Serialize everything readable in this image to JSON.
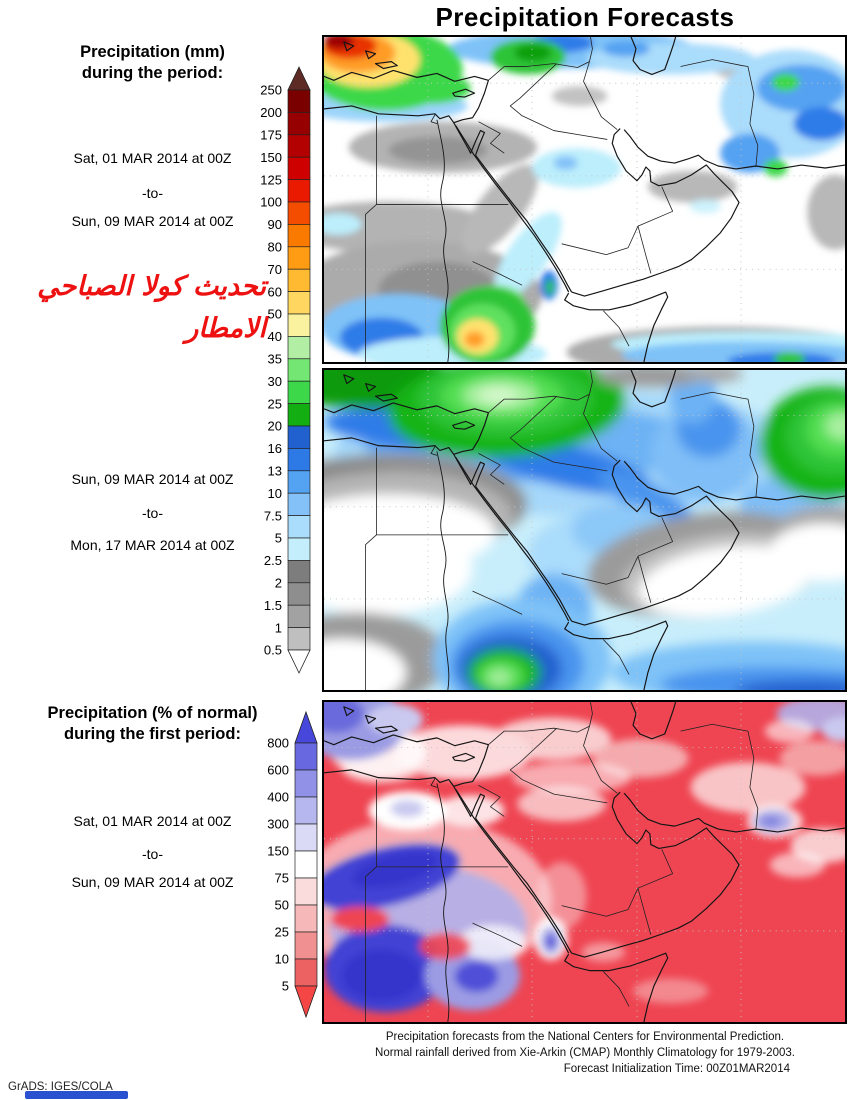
{
  "title": "Precipitation Forecasts",
  "panel1": {
    "label_line1": "Precipitation (mm)",
    "label_line2": "during the period:",
    "date_from": "Sat, 01 MAR 2014 at 00Z",
    "date_sep": "-to-",
    "date_to": "Sun, 09 MAR 2014 at 00Z"
  },
  "panel2": {
    "date_from": "Sun, 09 MAR 2014 at 00Z",
    "date_sep": "-to-",
    "date_to": "Mon, 17 MAR 2014 at 00Z"
  },
  "panel3": {
    "label_line1": "Precipitation (% of normal)",
    "label_line2": "during the first period:",
    "date_from": "Sat, 01 MAR 2014 at 00Z",
    "date_sep": "-to-",
    "date_to": "Sun, 09 MAR 2014 at 00Z"
  },
  "annotation_arabic": {
    "line1": "تحديث كولا الصباحي",
    "line2": "الامطار",
    "color": "#ee1111"
  },
  "footer": {
    "line1": "Precipitation forecasts from the National Centers for Environmental Prediction.",
    "line2": "Normal rainfall derived from Xie-Arkin (CMAP) Monthly Climatology for 1979-2003.",
    "line3": "Forecast Initialization Time: 00Z01MAR2014"
  },
  "credit": "GrADS: IGES/COLA",
  "bottom_bar_color": "#2a52d0",
  "colorbars": {
    "mm": {
      "units": "mm",
      "labels": [
        "250",
        "200",
        "175",
        "150",
        "125",
        "100",
        "90",
        "80",
        "70",
        "60",
        "50",
        "40",
        "35",
        "30",
        "25",
        "20",
        "16",
        "13",
        "10",
        "7.5",
        "5",
        "2.5",
        "2",
        "1.5",
        "1",
        "0.5"
      ],
      "band_colors": [
        "#7a0000",
        "#960000",
        "#b30000",
        "#cf0000",
        "#ea1a00",
        "#f54d00",
        "#fa7a00",
        "#ff9c14",
        "#ffba32",
        "#ffd65f",
        "#fbf2a0",
        "#b2efa4",
        "#74e674",
        "#3cd84a",
        "#12ae12",
        "#2060cf",
        "#2d7ae6",
        "#54a2f2",
        "#83c1f8",
        "#aadcfb",
        "#c4eefb",
        "#7d7d7d",
        "#8e8e8e",
        "#a2a2a2",
        "#bfbfbf"
      ],
      "over_color": "#5e2a24",
      "under_color": "#ffffff"
    },
    "pct": {
      "units": "% of normal",
      "labels": [
        "800",
        "600",
        "400",
        "300",
        "150",
        "75",
        "50",
        "25",
        "10",
        "5"
      ],
      "band_colors": [
        "#6868e0",
        "#9191e8",
        "#b7b7ef",
        "#dadaf6",
        "#ffffff",
        "#fbdcdc",
        "#f6b8b8",
        "#f19090",
        "#ec6262"
      ],
      "over_color": "#4747dc",
      "under_color": "#f54646"
    }
  },
  "chart_data": [
    {
      "type": "heatmap",
      "subtype": "filled-contour-forecast-map",
      "title": "Precipitation (mm), Sat 01 MAR 2014 00Z to Sun 09 MAR 2014 00Z",
      "region": "Middle East / NE Africa, approx 20E-70E, 5N-40N",
      "units": "mm",
      "levels": [
        0.5,
        1,
        1.5,
        2,
        2.5,
        5,
        7.5,
        10,
        13,
        16,
        20,
        25,
        30,
        35,
        40,
        50,
        60,
        70,
        80,
        90,
        100,
        125,
        150,
        175,
        200,
        250
      ],
      "legend_position": "left",
      "grid": "dotted lat/lon",
      "features": [
        "heavy precip hotspot (100-250mm red/orange core, green ring) over Aegean/W Turkey in top-left corner",
        "cyan-blue band 2.5-20mm along whole top edge (Turkey, Caspian region)",
        "green 20-30mm blob north-central (E Turkey)",
        "broad 2.5-16mm cyan/blue area with small 20-30mm green spots over Iran/Afghanistan right side",
        "0.5-2.5mm gray patches over N Egypt, S Egypt-N Sudan, Persian Gulf flank and bottom-right edge",
        "cyan 2.5-5mm patch over Jordan/N Saudi interior",
        "Ethiopian highlands bullseye bottom-left: green 20-40mm with 60-90mm yellow/orange core, blue 10-16mm to its west",
        "cyan strip with 13-30mm core along southern Red Sea",
        "dry white interior over most of Arabian Peninsula and Egypt"
      ]
    },
    {
      "type": "heatmap",
      "subtype": "filled-contour-forecast-map",
      "title": "Precipitation (mm), Sun 09 MAR 2014 00Z to Mon 17 MAR 2014 00Z",
      "region": "Middle East / NE Africa, approx 20E-70E, 5N-40N",
      "units": "mm",
      "levels": [
        0.5,
        1,
        1.5,
        2,
        2.5,
        5,
        7.5,
        10,
        13,
        16,
        20,
        25,
        30,
        35,
        40,
        50,
        60,
        70,
        80,
        90,
        100,
        125,
        150,
        175,
        200,
        250
      ],
      "legend_position": "left (shared with first map)",
      "grid": "dotted lat/lon",
      "features": [
        "smooth coarse-resolution field, pale-cyan 2.5-5mm background over most of domain",
        "large green 20-50mm maximum over SE Turkey/N Syria with pale-green center",
        "green 20-50mm maximum over Afghanistan at right edge",
        "royal-blue 13-20mm arc sweeping from E Mediterranean across Iraq toward Persian Gulf",
        "white dry holes rimmed by gray 0.5-2.5mm: Libya/W Egypt, central Saudi-Oman, bottom-left corner",
        "concentric bullseye over Ethiopia: blue rings to green 25-40mm core",
        "blue 10-20mm band along bottom-right (Indian Ocean/Horn)"
      ]
    },
    {
      "type": "heatmap",
      "subtype": "percent-of-normal-map",
      "title": "Precipitation (% of normal), Sat 01 MAR 2014 00Z to Sun 09 MAR 2014 00Z",
      "region": "Middle East / NE Africa, approx 20E-70E, 5N-40N",
      "units": "% of normal",
      "levels": [
        5,
        10,
        25,
        50,
        75,
        150,
        300,
        400,
        600,
        800
      ],
      "legend_position": "left",
      "grid": "dotted lat/lon",
      "features": [
        "dominant saturated red (<5-25% of normal) over Arabian Peninsula, Iran, Egypt and most of domain",
        "purple-blue >300-800% wet anomaly over NW corner (Aegean/W Turkey)",
        "large deep blue-purple >400-800% anomaly over Sudan / S Egypt border and SW Sudan",
        "small purple bullseye near southern Red Sea",
        "light purple 150-400% spot over Afghanistan and top-right corner",
        "white/pink 50-150% mottling across Levant, N Saudi and Iran fringes"
      ]
    }
  ]
}
